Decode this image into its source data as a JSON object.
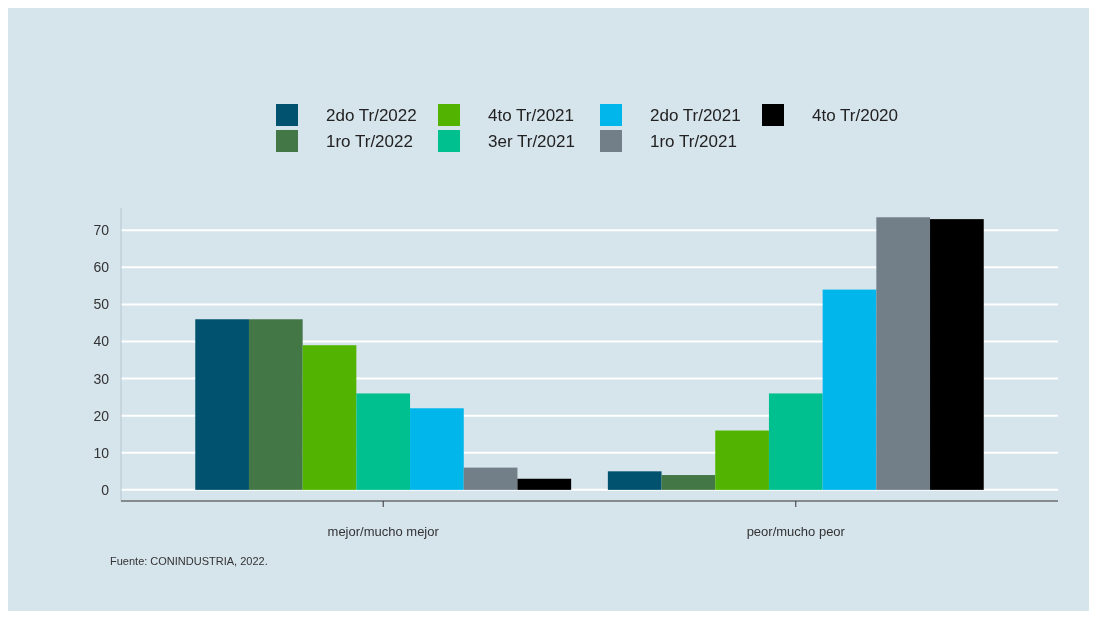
{
  "chart_data": {
    "type": "bar",
    "categories": [
      "mejor/mucho mejor",
      "peor/mucho peor"
    ],
    "series": [
      {
        "name": "2do Tr/2022",
        "color": "#00526f",
        "values": [
          46,
          5
        ]
      },
      {
        "name": "1ro Tr/2022",
        "color": "#437746",
        "values": [
          46,
          4
        ]
      },
      {
        "name": "4to Tr/2021",
        "color": "#52b400",
        "values": [
          39,
          16
        ]
      },
      {
        "name": "3er Tr/2021",
        "color": "#00c08f",
        "values": [
          26,
          26
        ]
      },
      {
        "name": "2do Tr/2021",
        "color": "#00b6ea",
        "values": [
          22,
          54
        ]
      },
      {
        "name": "1ro Tr/2021",
        "color": "#737f88",
        "values": [
          6,
          73.5
        ]
      },
      {
        "name": "4to Tr/2020",
        "color": "#000000",
        "values": [
          3,
          73
        ]
      }
    ],
    "ylim": [
      -3,
      76
    ],
    "yticks": [
      0,
      10,
      20,
      30,
      40,
      50,
      60,
      70
    ],
    "grid": "y",
    "legend": "top",
    "annotations": [
      "Fuente: CONINDUSTRIA, 2022."
    ]
  }
}
